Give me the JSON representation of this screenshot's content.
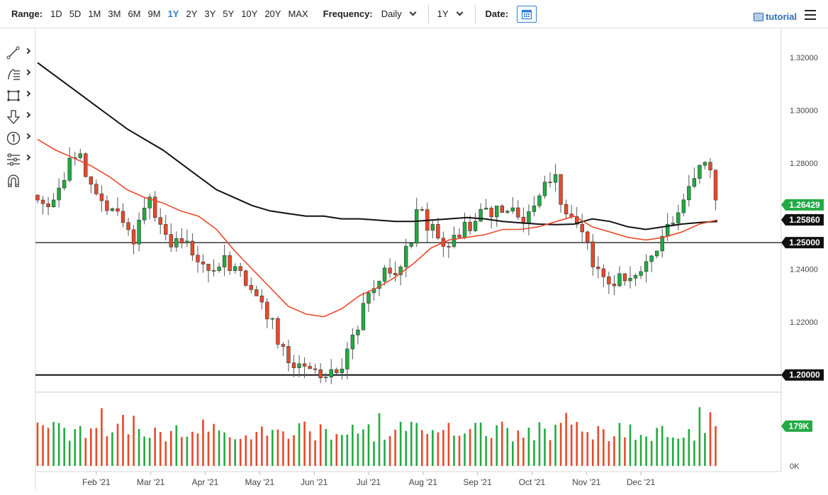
{
  "toolbar": {
    "range_label": "Range:",
    "ranges": [
      "1D",
      "5D",
      "1M",
      "3M",
      "6M",
      "9M",
      "1Y",
      "2Y",
      "3Y",
      "5Y",
      "10Y",
      "20Y",
      "MAX"
    ],
    "active_range": "1Y",
    "frequency_label": "Frequency:",
    "frequency_value": "Daily",
    "period_value": "1Y",
    "date_label": "Date:",
    "tutorial_label": "tutorial"
  },
  "icons": {
    "tools": [
      "trendline-icon",
      "fibonacci-icon",
      "rectangle-icon",
      "arrow-down-icon",
      "counter-one-icon",
      "measure-icon",
      "magnet-icon"
    ],
    "calendar": "calendar-icon",
    "tutorial": "film-icon",
    "menu": "hamburger-menu-icon"
  },
  "chart_data": {
    "type": "candlestick",
    "months": [
      "Feb '21",
      "Mar '21",
      "Apr '21",
      "May '21",
      "Jun '21",
      "Jul '21",
      "Aug '21",
      "Sep '21",
      "Oct '21",
      "Nov '21",
      "Dec '21"
    ],
    "y_ticks": [
      "1.32000",
      "1.30000",
      "1.28000",
      "1.26000",
      "1.24000",
      "1.22000",
      "1.20000"
    ],
    "ylim": [
      1.1935,
      1.3307
    ],
    "price_path": [
      [
        0,
        1.268
      ],
      [
        6,
        1.262
      ],
      [
        12,
        1.27
      ],
      [
        18,
        1.279
      ],
      [
        24,
        1.281
      ],
      [
        30,
        1.273
      ],
      [
        36,
        1.265
      ],
      [
        42,
        1.262
      ],
      [
        48,
        1.258
      ],
      [
        54,
        1.252
      ],
      [
        58,
        1.262
      ],
      [
        64,
        1.265
      ],
      [
        70,
        1.256
      ],
      [
        76,
        1.248
      ],
      [
        82,
        1.25
      ],
      [
        88,
        1.247
      ],
      [
        94,
        1.24
      ],
      [
        100,
        1.241
      ],
      [
        106,
        1.243
      ],
      [
        112,
        1.24
      ],
      [
        118,
        1.236
      ],
      [
        124,
        1.228
      ],
      [
        130,
        1.222
      ],
      [
        136,
        1.213
      ],
      [
        142,
        1.206
      ],
      [
        148,
        1.204
      ],
      [
        154,
        1.204
      ],
      [
        160,
        1.201
      ],
      [
        166,
        1.202
      ],
      [
        172,
        1.205
      ],
      [
        178,
        1.214
      ],
      [
        184,
        1.228
      ],
      [
        190,
        1.232
      ],
      [
        196,
        1.24
      ],
      [
        200,
        1.236
      ],
      [
        205,
        1.245
      ],
      [
        210,
        1.252
      ],
      [
        214,
        1.268
      ],
      [
        218,
        1.258
      ],
      [
        224,
        1.252
      ],
      [
        230,
        1.247
      ],
      [
        236,
        1.253
      ],
      [
        242,
        1.256
      ],
      [
        246,
        1.26
      ],
      [
        250,
        1.266
      ],
      [
        254,
        1.26
      ],
      [
        258,
        1.261
      ],
      [
        262,
        1.262
      ],
      [
        266,
        1.266
      ],
      [
        270,
        1.26
      ],
      [
        274,
        1.258
      ],
      [
        278,
        1.262
      ],
      [
        282,
        1.268
      ],
      [
        286,
        1.272
      ],
      [
        290,
        1.276
      ],
      [
        294,
        1.266
      ],
      [
        298,
        1.261
      ],
      [
        302,
        1.258
      ],
      [
        306,
        1.253
      ],
      [
        310,
        1.246
      ],
      [
        316,
        1.236
      ],
      [
        322,
        1.234
      ],
      [
        328,
        1.236
      ],
      [
        334,
        1.239
      ],
      [
        340,
        1.242
      ],
      [
        346,
        1.248
      ],
      [
        350,
        1.25
      ],
      [
        356,
        1.258
      ],
      [
        362,
        1.265
      ],
      [
        368,
        1.27
      ],
      [
        372,
        1.279
      ],
      [
        376,
        1.282
      ],
      [
        379,
        1.273
      ],
      [
        382,
        1.264
      ]
    ],
    "last_index": 382,
    "ma_short": {
      "name": "",
      "color": "#e8492c",
      "values": [
        1.289,
        1.285,
        1.282,
        1.279,
        1.275,
        1.27,
        1.267,
        1.265,
        1.262,
        1.26,
        1.255,
        1.247,
        1.24,
        1.233,
        1.226,
        1.223,
        1.222,
        1.225,
        1.23,
        1.233,
        1.237,
        1.242,
        1.248,
        1.251,
        1.252,
        1.253,
        1.255,
        1.255,
        1.256,
        1.258,
        1.26,
        1.256,
        1.254,
        1.252,
        1.251,
        1.252,
        1.254,
        1.257,
        1.2586
      ]
    },
    "ma_long": {
      "name": "",
      "color": "#111111",
      "values": [
        1.318,
        1.313,
        1.308,
        1.303,
        1.298,
        1.293,
        1.289,
        1.285,
        1.28,
        1.275,
        1.27,
        1.267,
        1.264,
        1.262,
        1.261,
        1.26,
        1.26,
        1.259,
        1.259,
        1.2585,
        1.258,
        1.258,
        1.2585,
        1.259,
        1.2595,
        1.259,
        1.258,
        1.2575,
        1.257,
        1.2568,
        1.257,
        1.259,
        1.258,
        1.256,
        1.255,
        1.256,
        1.257,
        1.2576,
        1.258
      ]
    },
    "price_labels": [
      {
        "text": "1.26429",
        "value": 1.26429,
        "color": "#22aa44"
      },
      {
        "text": "1.25860",
        "value": 1.2586,
        "color": "#111111"
      },
      {
        "text": "1.25000",
        "value": 1.25,
        "color": "#111111"
      },
      {
        "text": "1.20000",
        "value": 1.2,
        "color": "#111111"
      }
    ],
    "horizontal_lines": [
      1.25,
      1.2
    ],
    "up_color": "#22aa44",
    "down_color": "#e8492c",
    "volume": {
      "ticks": [
        "0K"
      ],
      "last_label": "179K",
      "last_value": 179,
      "peak": 300
    }
  }
}
